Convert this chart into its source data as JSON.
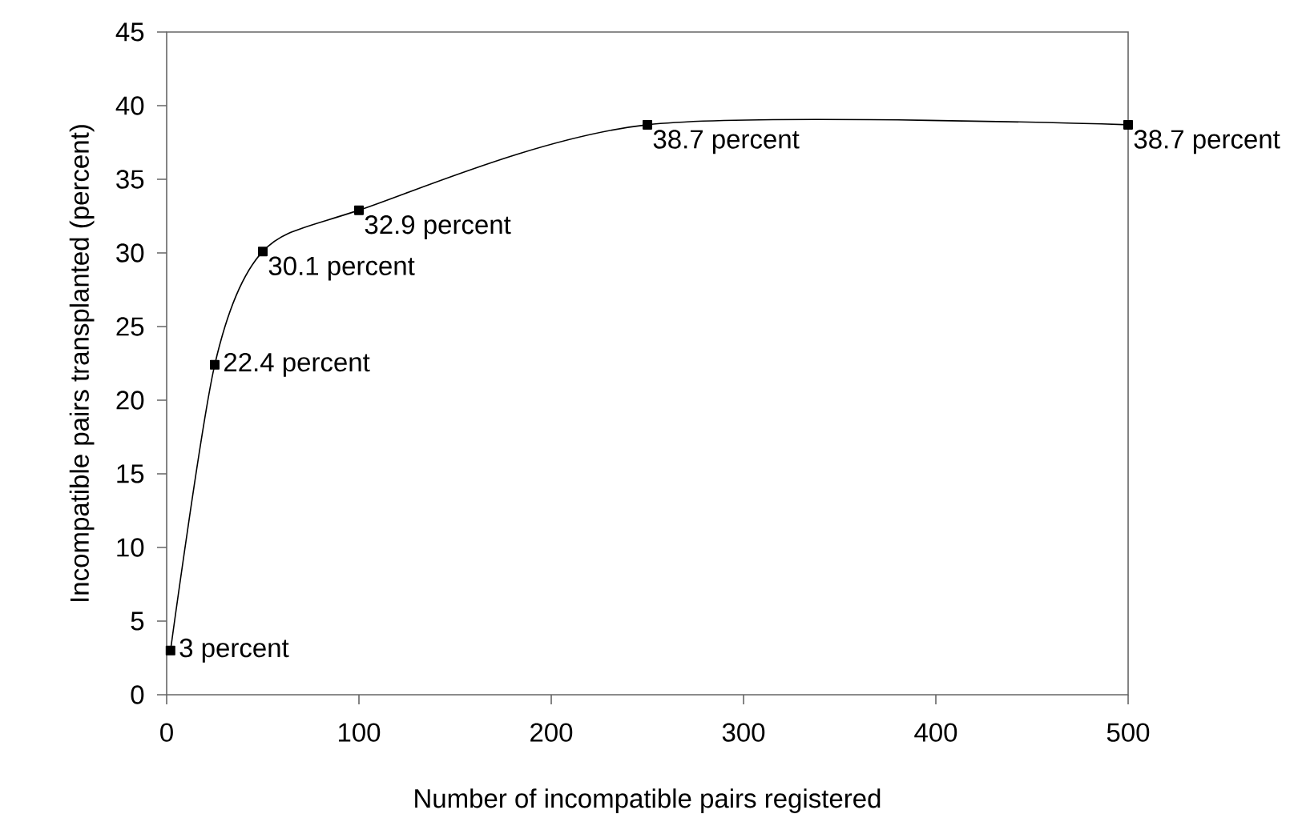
{
  "chart_data": {
    "type": "line",
    "xlabel": "Number of incompatible pairs registered",
    "ylabel": "Incompatible pairs transplanted (percent)",
    "x": [
      2,
      25,
      50,
      100,
      250,
      500
    ],
    "series": [
      {
        "color": "#000000",
        "values": [
          3,
          22.4,
          30.1,
          32.9,
          38.7,
          38.7
        ]
      }
    ],
    "value_labels": [
      "3 percent",
      "22.4 percent",
      "30.1 percent",
      "32.9 percent",
      "38.7 percent",
      "38.7 percent"
    ],
    "xlim": [
      0,
      500
    ],
    "xticks": [
      0,
      100,
      200,
      300,
      400,
      500
    ],
    "ylim": [
      0,
      45
    ],
    "yticks": [
      0,
      5,
      10,
      15,
      20,
      25,
      30,
      35,
      40,
      45
    ],
    "grid": false,
    "marker": "square",
    "line_style": "solid"
  }
}
